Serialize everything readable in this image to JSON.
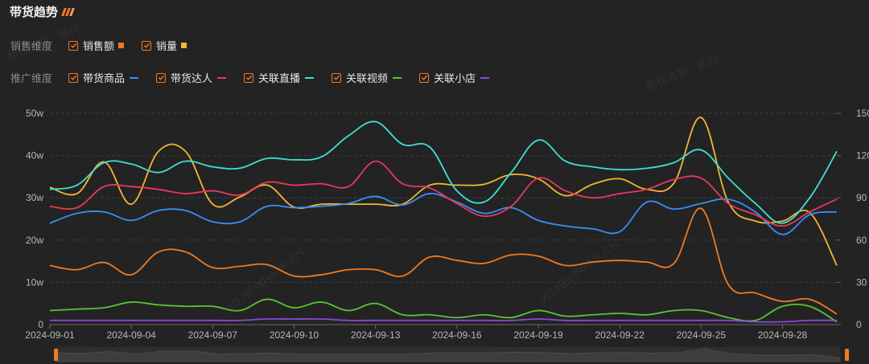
{
  "header": {
    "title": "带货趋势"
  },
  "sales_dimension": {
    "label": "销售维度",
    "items": [
      {
        "label": "销售额",
        "color": "#f07a1e"
      },
      {
        "label": "销量",
        "color": "#f2b632"
      }
    ]
  },
  "promo_dimension": {
    "label": "推广维度",
    "items": [
      {
        "label": "带货商品",
        "color": "#3a8ef6"
      },
      {
        "label": "带货达人",
        "color": "#e8385a"
      },
      {
        "label": "关联直播",
        "color": "#3fe0d0"
      },
      {
        "label": "关联视频",
        "color": "#5bc236"
      },
      {
        "label": "关联小店",
        "color": "#8a4ad8"
      }
    ]
  },
  "watermarks": [
    "新榜有数 · 新抖",
    "新榜有数 · 新抖",
    "XD.NEWRANK.CN",
    "XD.NEWRANK.CN"
  ],
  "chart_data": {
    "type": "line",
    "x": [
      "2024-09-01",
      "2024-09-02",
      "2024-09-03",
      "2024-09-04",
      "2024-09-05",
      "2024-09-06",
      "2024-09-07",
      "2024-09-08",
      "2024-09-09",
      "2024-09-10",
      "2024-09-11",
      "2024-09-12",
      "2024-09-13",
      "2024-09-14",
      "2024-09-15",
      "2024-09-16",
      "2024-09-17",
      "2024-09-18",
      "2024-09-19",
      "2024-09-20",
      "2024-09-21",
      "2024-09-22",
      "2024-09-23",
      "2024-09-24",
      "2024-09-25",
      "2024-09-26",
      "2024-09-27",
      "2024-09-28",
      "2024-09-29",
      "2024-09-30"
    ],
    "x_tick_labels": [
      "2024-09-01",
      "2024-09-04",
      "2024-09-07",
      "2024-09-10",
      "2024-09-13",
      "2024-09-16",
      "2024-09-19",
      "2024-09-22",
      "2024-09-25",
      "2024-09-28"
    ],
    "left_axis": {
      "ticks": [
        0,
        10,
        20,
        30,
        40,
        50
      ],
      "tick_labels": [
        "0",
        "10w",
        "20w",
        "30w",
        "40w",
        "50w"
      ],
      "ylim": [
        0,
        500000
      ]
    },
    "right_axis": {
      "ticks": [
        0,
        30,
        60,
        90,
        120,
        150
      ],
      "tick_labels": [
        "0",
        "30",
        "60",
        "90",
        "120",
        "150"
      ],
      "ylim": [
        0,
        150
      ]
    },
    "grid": true,
    "series": [
      {
        "name": "销售额",
        "axis": "left",
        "color": "#f07a1e",
        "values": [
          140000,
          130000,
          147000,
          118000,
          172000,
          172000,
          135000,
          138000,
          142000,
          115000,
          118000,
          130000,
          130000,
          115000,
          160000,
          152000,
          145000,
          165000,
          162000,
          140000,
          148000,
          152000,
          148000,
          145000,
          275000,
          95000,
          75000,
          55000,
          60000,
          25000
        ]
      },
      {
        "name": "销量",
        "axis": "left",
        "color": "#f2b632",
        "values": [
          325000,
          310000,
          385000,
          285000,
          410000,
          410000,
          285000,
          302000,
          330000,
          278000,
          285000,
          285000,
          285000,
          285000,
          330000,
          330000,
          332000,
          355000,
          345000,
          305000,
          332000,
          345000,
          320000,
          335000,
          490000,
          290000,
          245000,
          245000,
          265000,
          140000
        ]
      },
      {
        "name": "带货商品",
        "axis": "right",
        "color": "#3a8ef6",
        "values": [
          72,
          79,
          80,
          74,
          81,
          81,
          73,
          73,
          84,
          83,
          84,
          86,
          91,
          85,
          93,
          87,
          79,
          83,
          74,
          70,
          68,
          66,
          87,
          82,
          86,
          89,
          80,
          64,
          78,
          80
        ]
      },
      {
        "name": "带货达人",
        "axis": "right",
        "color": "#e8385a",
        "values": [
          84,
          83,
          98,
          98,
          96,
          93,
          95,
          92,
          101,
          99,
          100,
          98,
          116,
          100,
          97,
          86,
          77,
          84,
          104,
          95,
          90,
          93,
          96,
          103,
          104,
          86,
          78,
          70,
          80,
          89
        ]
      },
      {
        "name": "关联直播",
        "axis": "right",
        "color": "#3fe0d0",
        "values": [
          96,
          99,
          115,
          114,
          108,
          116,
          112,
          111,
          118,
          117,
          119,
          134,
          144,
          128,
          126,
          95,
          87,
          108,
          131,
          116,
          112,
          110,
          111,
          115,
          124,
          104,
          86,
          72,
          90,
          123
        ]
      },
      {
        "name": "关联视频",
        "axis": "right",
        "color": "#5bc236",
        "values": [
          10,
          11,
          12,
          16,
          14,
          13,
          13,
          10,
          18,
          12,
          16,
          10,
          15,
          7,
          7,
          5,
          7,
          5,
          10,
          6,
          7,
          8,
          7,
          10,
          10,
          5,
          3,
          13,
          13,
          2
        ]
      },
      {
        "name": "关联小店",
        "axis": "right",
        "color": "#8a4ad8",
        "values": [
          3,
          3,
          3,
          3,
          3,
          3,
          3,
          3,
          4,
          4,
          4,
          3,
          3,
          3,
          3,
          3,
          3,
          3,
          4,
          3,
          3,
          3,
          3,
          3,
          3,
          3,
          2,
          2,
          3,
          3
        ]
      }
    ]
  }
}
